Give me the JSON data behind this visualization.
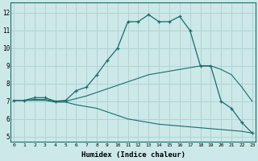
{
  "xlabel": "Humidex (Indice chaleur)",
  "ylabel": "",
  "background_color": "#cce8e8",
  "grid_color": "#b0d4d4",
  "line_color": "#1a6b6b",
  "x_ticks": [
    0,
    1,
    2,
    3,
    4,
    5,
    6,
    7,
    8,
    9,
    10,
    11,
    12,
    13,
    14,
    15,
    16,
    17,
    18,
    19,
    20,
    21,
    22,
    23
  ],
  "y_ticks": [
    5,
    6,
    7,
    8,
    9,
    10,
    11,
    12
  ],
  "xlim": [
    -0.3,
    23.3
  ],
  "ylim": [
    4.7,
    12.6
  ],
  "line_max": {
    "x": [
      0,
      1,
      2,
      3,
      4,
      5,
      6,
      7,
      8,
      9,
      10,
      11,
      12,
      13,
      14,
      15,
      16,
      17,
      18,
      19,
      20,
      21,
      22,
      23
    ],
    "y": [
      7.05,
      7.05,
      7.2,
      7.2,
      7.0,
      7.05,
      7.6,
      7.8,
      8.5,
      9.3,
      10.0,
      11.5,
      11.5,
      11.9,
      11.5,
      11.5,
      11.8,
      11.0,
      9.0,
      9.0,
      7.0,
      6.6,
      5.8,
      5.2
    ]
  },
  "line_mean": {
    "x": [
      0,
      1,
      2,
      3,
      4,
      5,
      6,
      7,
      8,
      9,
      10,
      11,
      12,
      13,
      14,
      15,
      16,
      17,
      18,
      19,
      20,
      21,
      22,
      23
    ],
    "y": [
      7.05,
      7.05,
      7.1,
      7.1,
      7.0,
      7.0,
      7.15,
      7.3,
      7.5,
      7.7,
      7.9,
      8.1,
      8.3,
      8.5,
      8.6,
      8.7,
      8.8,
      8.9,
      9.0,
      9.0,
      8.8,
      8.5,
      7.8,
      7.0
    ]
  },
  "line_min": {
    "x": [
      0,
      1,
      2,
      3,
      4,
      5,
      6,
      7,
      8,
      9,
      10,
      11,
      12,
      13,
      14,
      15,
      16,
      17,
      18,
      19,
      20,
      21,
      22,
      23
    ],
    "y": [
      7.05,
      7.05,
      7.05,
      7.05,
      6.95,
      6.95,
      6.8,
      6.7,
      6.6,
      6.4,
      6.2,
      6.0,
      5.9,
      5.8,
      5.7,
      5.65,
      5.6,
      5.55,
      5.5,
      5.45,
      5.4,
      5.35,
      5.3,
      5.2
    ]
  }
}
